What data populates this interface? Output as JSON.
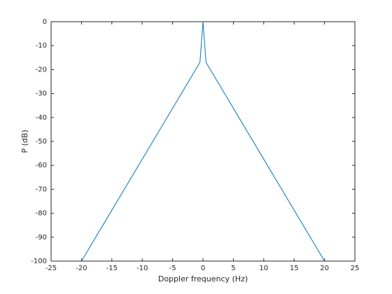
{
  "chart_data": {
    "type": "line",
    "xlabel": "Doppler frequency (Hz)",
    "ylabel": "P (dB)",
    "x": [
      -20,
      -0.5,
      0,
      0.5,
      20
    ],
    "series": [
      {
        "color": "#0072bd",
        "values": [
          -100,
          -17,
          0,
          -17,
          -100
        ]
      }
    ],
    "xlim": [
      -25,
      25
    ],
    "xticks": [
      -25,
      -20,
      -15,
      -10,
      -5,
      0,
      5,
      10,
      15,
      20,
      25
    ],
    "ylim": [
      -100,
      0
    ],
    "yticks": [
      -100,
      -90,
      -80,
      -70,
      -60,
      -50,
      -40,
      -30,
      -20,
      -10,
      0
    ],
    "grid": false
  }
}
